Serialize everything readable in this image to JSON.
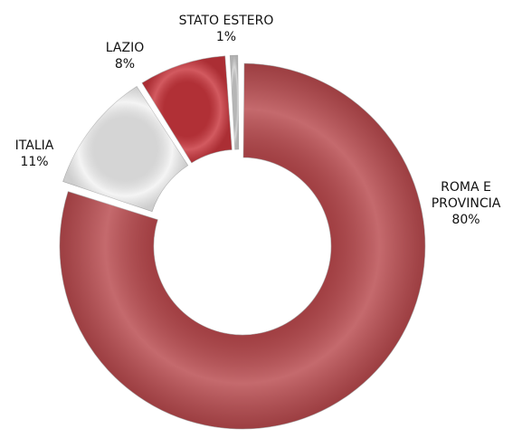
{
  "chart_data": {
    "type": "donut",
    "categories": [
      "ROMA E PROVINCIA",
      "ITALIA",
      "LAZIO",
      "STATO ESTERO"
    ],
    "values": [
      80,
      11,
      8,
      1
    ],
    "value_labels": [
      "80%",
      "11%",
      "8%",
      "1%"
    ],
    "colors": [
      "#b8494d",
      "#f2f2f2",
      "#c9363d",
      "#cfcfcf"
    ]
  }
}
